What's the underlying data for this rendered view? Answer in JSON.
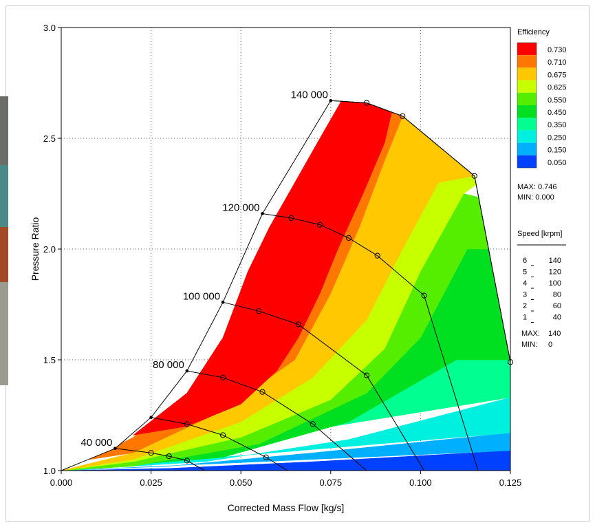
{
  "chart_data": {
    "type": "contour",
    "xlabel": "Corrected Mass Flow  [kg/s]",
    "ylabel": "Pressure Ratio",
    "xlim": [
      0.0,
      0.125
    ],
    "ylim": [
      1.0,
      3.0
    ],
    "x_ticks": [
      "0.000",
      "0.025",
      "0.050",
      "0.075",
      "0.100",
      "0.125"
    ],
    "y_ticks": [
      "1.0",
      "1.5",
      "2.0",
      "2.5",
      "3.0"
    ],
    "grid": true,
    "surge_line": [
      [
        0.0,
        1.0
      ],
      [
        0.015,
        1.1
      ],
      [
        0.025,
        1.24
      ],
      [
        0.035,
        1.45
      ],
      [
        0.045,
        1.76
      ],
      [
        0.056,
        2.16
      ],
      [
        0.075,
        2.67
      ]
    ],
    "choke_boundary": [
      [
        0.075,
        2.67
      ],
      [
        0.085,
        2.66
      ],
      [
        0.095,
        2.6
      ],
      [
        0.115,
        2.33
      ],
      [
        0.125,
        1.49
      ]
    ],
    "speed_lines": [
      {
        "label": "40 000",
        "points": [
          [
            0.015,
            1.1
          ],
          [
            0.025,
            1.08
          ],
          [
            0.03,
            1.065
          ],
          [
            0.035,
            1.045
          ],
          [
            0.04,
            1.0
          ]
        ]
      },
      {
        "label": "",
        "points": [
          [
            0.025,
            1.24
          ],
          [
            0.035,
            1.21
          ],
          [
            0.045,
            1.16
          ],
          [
            0.057,
            1.06
          ],
          [
            0.063,
            1.0
          ]
        ]
      },
      {
        "label": "80 000",
        "points": [
          [
            0.035,
            1.45
          ],
          [
            0.045,
            1.42
          ],
          [
            0.056,
            1.355
          ],
          [
            0.07,
            1.21
          ],
          [
            0.085,
            1.0
          ]
        ]
      },
      {
        "label": "100 000",
        "points": [
          [
            0.045,
            1.76
          ],
          [
            0.055,
            1.72
          ],
          [
            0.066,
            1.66
          ],
          [
            0.085,
            1.43
          ],
          [
            0.101,
            1.0
          ]
        ]
      },
      {
        "label": "120 000",
        "points": [
          [
            0.056,
            2.16
          ],
          [
            0.064,
            2.14
          ],
          [
            0.072,
            2.11
          ],
          [
            0.08,
            2.05
          ],
          [
            0.088,
            1.97
          ],
          [
            0.101,
            1.79
          ],
          [
            0.116,
            1.0
          ]
        ]
      },
      {
        "label": "140 000",
        "points": [
          [
            0.075,
            2.67
          ],
          [
            0.085,
            2.66
          ],
          [
            0.095,
            2.6
          ],
          [
            0.115,
            2.33
          ],
          [
            0.125,
            1.49
          ]
        ]
      }
    ],
    "efficiency_legend": {
      "title": "Efficiency",
      "levels": [
        {
          "value": "0.730",
          "color": "#ff0000"
        },
        {
          "value": "0.710",
          "color": "#ff7700"
        },
        {
          "value": "0.675",
          "color": "#ffc800"
        },
        {
          "value": "0.625",
          "color": "#c8ff00"
        },
        {
          "value": "0.550",
          "color": "#55ee00"
        },
        {
          "value": "0.450",
          "color": "#00e020"
        },
        {
          "value": "0.350",
          "color": "#00ff90"
        },
        {
          "value": "0.250",
          "color": "#00f0e0"
        },
        {
          "value": "0.150",
          "color": "#00b0ff"
        },
        {
          "value": "0.050",
          "color": "#0040ff"
        }
      ],
      "max": "MAX: 0.746",
      "min": "MIN: 0.000"
    },
    "speed_legend": {
      "title": "Speed  [krpm]",
      "rows": [
        {
          "index": "6",
          "value": "140"
        },
        {
          "index": "5",
          "value": "120"
        },
        {
          "index": "4",
          "value": "100"
        },
        {
          "index": "3",
          "value": "80"
        },
        {
          "index": "2",
          "value": "60"
        },
        {
          "index": "1",
          "value": "40"
        }
      ],
      "max_label": "MAX:",
      "max_value": "140",
      "min_label": "MIN:",
      "min_value": "0"
    }
  }
}
